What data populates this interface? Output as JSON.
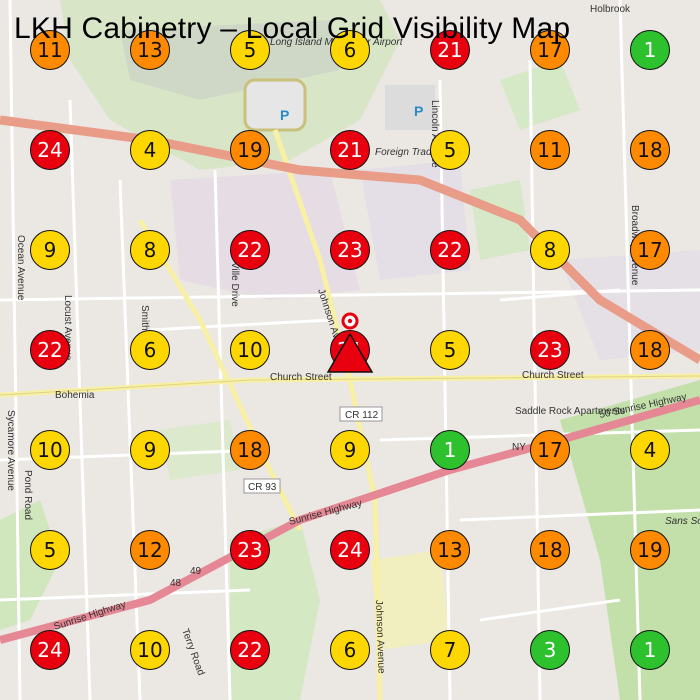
{
  "title": "LKH Cabinetry – Local Grid Visibility Map",
  "colors": {
    "red": "#e8000f",
    "orange": "#ff8a00",
    "yellow": "#ffd700",
    "green": "#2ec12e"
  },
  "grid": [
    [
      "11",
      "13",
      "5",
      "6",
      "21",
      "17",
      "1"
    ],
    [
      "24",
      "4",
      "19",
      "21",
      "5",
      "11",
      "18"
    ],
    [
      "9",
      "8",
      "22",
      "23",
      "22",
      "8",
      "17"
    ],
    [
      "22",
      "6",
      "10",
      "21",
      "5",
      "23",
      "18"
    ],
    [
      "10",
      "9",
      "18",
      "9",
      "1",
      "17",
      "4"
    ],
    [
      "5",
      "12",
      "23",
      "24",
      "13",
      "18",
      "19"
    ],
    [
      "24",
      "10",
      "22",
      "6",
      "7",
      "3",
      "1"
    ]
  ],
  "map_labels": {
    "church_street": "Church Street",
    "church_street_2": "Church Street",
    "bohemia": "Bohemia",
    "cr112": "CR 112",
    "cr93": "CR 93",
    "sunrise_1": "50 Sunrise Highway",
    "sunrise_2": "Sunrise Highway",
    "sunrise_3": "Sunrise Highway",
    "johnson_avenue": "Johnson Avenue",
    "johnson_avenue_2": "Johnson Avenue",
    "ocean_avenue": "Ocean Avenue",
    "locust_avenue": "Locust Avenue",
    "lincoln_avenue": "Lincoln Avenue",
    "broadway": "Broadway Avenue",
    "smith": "Smith Street",
    "terry_road": "Terry Road",
    "saddle_rock": "Saddle Rock Apartments",
    "holbrook": "Holbrook",
    "foreign_trade": "Foreign Trade Zone",
    "airport": "Long Island MacArthur Airport",
    "parking": "P",
    "ny": "NY",
    "sans_souci": "Sans Souci County Park",
    "sycamore": "Sycamore Avenue",
    "ville_drive": "Ville Drive",
    "pond": "Pond Road",
    "highway_48": "48",
    "highway_49": "49"
  }
}
